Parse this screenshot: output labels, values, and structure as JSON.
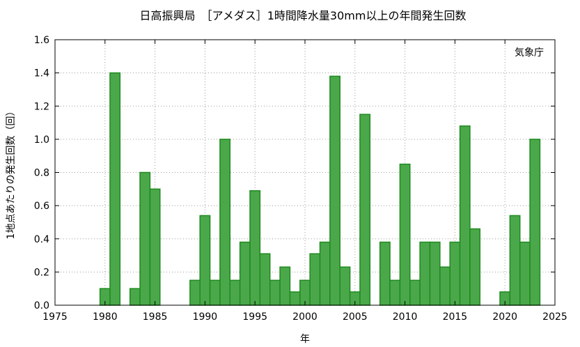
{
  "chart_data": {
    "type": "bar",
    "title": "日高振興局　［アメダス］1時間降水量30mm以上の年間発生回数",
    "xlabel": "年",
    "ylabel": "1地点あたりの発生回数（回）",
    "annotation": "気象庁",
    "xlim": [
      1975,
      2025
    ],
    "ylim": [
      0,
      1.6
    ],
    "x_ticks": [
      1975,
      1980,
      1985,
      1990,
      1995,
      2000,
      2005,
      2010,
      2015,
      2020,
      2025
    ],
    "y_ticks": [
      "0.0",
      "0.2",
      "0.4",
      "0.6",
      "0.8",
      "1.0",
      "1.2",
      "1.4",
      "1.6"
    ],
    "grid": true,
    "color": "#4aa84a",
    "edge_color": "#1f8a1f",
    "x": [
      1980,
      1981,
      1983,
      1984,
      1985,
      1989,
      1990,
      1991,
      1992,
      1993,
      1994,
      1995,
      1996,
      1997,
      1998,
      1999,
      2000,
      2001,
      2002,
      2003,
      2004,
      2005,
      2006,
      2008,
      2009,
      2010,
      2011,
      2012,
      2013,
      2014,
      2015,
      2016,
      2017,
      2020,
      2021,
      2022,
      2023
    ],
    "values": [
      0.1,
      1.4,
      0.1,
      0.8,
      0.7,
      0.15,
      0.54,
      0.15,
      1.0,
      0.15,
      0.38,
      0.69,
      0.31,
      0.15,
      0.23,
      0.08,
      0.15,
      0.31,
      0.38,
      1.38,
      0.23,
      0.08,
      1.15,
      0.38,
      0.15,
      0.85,
      0.15,
      0.38,
      0.38,
      0.23,
      0.38,
      1.08,
      0.46,
      0.08,
      0.54,
      0.38,
      1.0
    ]
  }
}
